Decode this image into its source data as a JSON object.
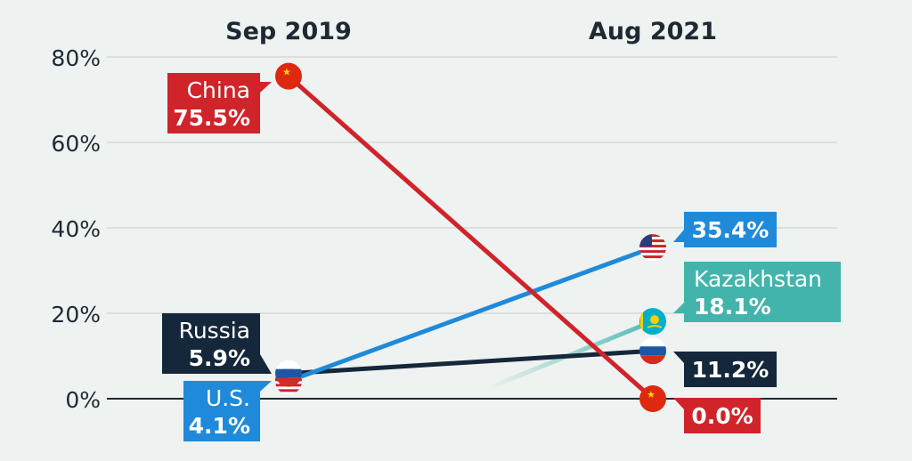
{
  "chart_data": {
    "type": "line",
    "categories": [
      "Sep 2019",
      "Aug 2021"
    ],
    "yticks": [
      "80%",
      "60%",
      "40%",
      "20%",
      "0%"
    ],
    "ylim": [
      0,
      80
    ],
    "grid": true,
    "series": [
      {
        "name": "China",
        "values": [
          75.5,
          0.0
        ],
        "labels": [
          "75.5%",
          "0.0%"
        ],
        "color": "#d0232a",
        "flag": "china-flag-icon"
      },
      {
        "name": "U.S.",
        "values": [
          4.1,
          35.4
        ],
        "labels": [
          "4.1%",
          "35.4%"
        ],
        "color": "#1f8ad9",
        "flag": "usa-flag-icon"
      },
      {
        "name": "Russia",
        "values": [
          5.9,
          11.2
        ],
        "labels": [
          "5.9%",
          "11.2%"
        ],
        "color": "#15273a",
        "flag": "russia-flag-icon"
      },
      {
        "name": "Kazakhstan",
        "values": [
          null,
          18.1
        ],
        "labels": [
          "",
          "18.1%"
        ],
        "color": "#43b4ab",
        "flag": "kazakhstan-flag-icon"
      }
    ]
  }
}
